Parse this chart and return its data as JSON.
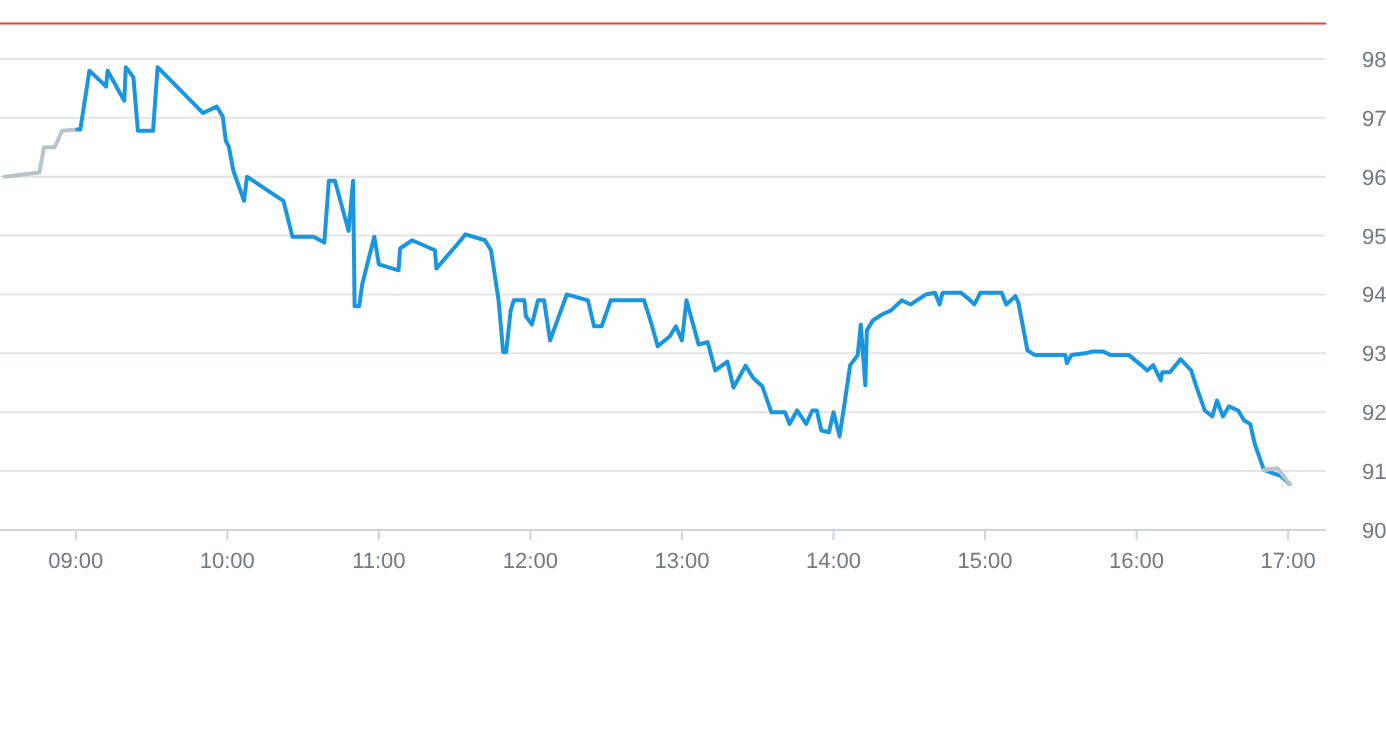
{
  "chart_data": {
    "type": "line",
    "xlim": [
      8.5,
      17.25
    ],
    "ylim": [
      90,
      99
    ],
    "xticks": [
      {
        "value": 9,
        "label": "09:00"
      },
      {
        "value": 10,
        "label": "10:00"
      },
      {
        "value": 11,
        "label": "11:00"
      },
      {
        "value": 12,
        "label": "12:00"
      },
      {
        "value": 13,
        "label": "13:00"
      },
      {
        "value": 14,
        "label": "14:00"
      },
      {
        "value": 15,
        "label": "15:00"
      },
      {
        "value": 16,
        "label": "16:00"
      },
      {
        "value": 17,
        "label": "17:00"
      }
    ],
    "yticks": [
      90,
      91,
      92,
      93,
      94,
      95,
      96,
      97,
      98
    ],
    "grid": "y",
    "marker": "none",
    "line_style": "solid",
    "ref_lines": [
      {
        "axis": "y",
        "value": 98.6,
        "color": "#e0443c"
      }
    ],
    "series": [
      {
        "color": "#b8c4cc",
        "x": [
          8.53,
          8.76,
          8.79,
          8.86,
          8.91,
          9.01
        ],
        "values": [
          96.0,
          96.07,
          96.5,
          96.5,
          96.78,
          96.8
        ]
      },
      {
        "color": "#1a96e0",
        "x": [
          9.01,
          9.03,
          9.09,
          9.2,
          9.21,
          9.32,
          9.33,
          9.38,
          9.41,
          9.51,
          9.54,
          9.84,
          9.93,
          9.97,
          9.99,
          10.01,
          10.04,
          10.11,
          10.13,
          10.37,
          10.43,
          10.57,
          10.64,
          10.67,
          10.71,
          10.8,
          10.83,
          10.84,
          10.87,
          10.89,
          10.93,
          10.97,
          11.0,
          11.13,
          11.14,
          11.22,
          11.37,
          11.38,
          11.54,
          11.57,
          11.7,
          11.74,
          11.79,
          11.82,
          11.84,
          11.87,
          11.89,
          11.96,
          11.97,
          12.01,
          12.05,
          12.09,
          12.13,
          12.24,
          12.38,
          12.42,
          12.47,
          12.53,
          12.75,
          12.8,
          12.84,
          12.92,
          12.96,
          13.0,
          13.03,
          13.11,
          13.17,
          13.22,
          13.3,
          13.34,
          13.42,
          13.47,
          13.53,
          13.59,
          13.68,
          13.71,
          13.76,
          13.82,
          13.86,
          13.89,
          13.92,
          13.97,
          14.0,
          14.04,
          14.07,
          14.11,
          14.16,
          14.18,
          14.21,
          14.22,
          14.26,
          14.32,
          14.38,
          14.45,
          14.51,
          14.61,
          14.67,
          14.7,
          14.72,
          14.84,
          14.89,
          14.93,
          14.97,
          15.11,
          15.14,
          15.2,
          15.22,
          15.28,
          15.33,
          15.53,
          15.54,
          15.57,
          15.66,
          15.71,
          15.78,
          15.83,
          15.95,
          16.03,
          16.07,
          16.11,
          16.16,
          16.17,
          16.22,
          16.29,
          16.36,
          16.39,
          16.45,
          16.5,
          16.53,
          16.57,
          16.61,
          16.67,
          16.71,
          16.75,
          16.78,
          16.84,
          16.95,
          17.01
        ],
        "values": [
          96.8,
          96.8,
          97.8,
          97.53,
          97.8,
          97.29,
          97.86,
          97.69,
          96.78,
          96.78,
          97.86,
          97.08,
          97.19,
          97.02,
          96.61,
          96.51,
          96.1,
          95.59,
          96.0,
          95.59,
          94.98,
          94.98,
          94.88,
          95.93,
          95.93,
          95.08,
          95.93,
          93.8,
          93.8,
          94.17,
          94.58,
          94.98,
          94.51,
          94.41,
          94.78,
          94.92,
          94.75,
          94.44,
          94.92,
          95.02,
          94.92,
          94.75,
          93.9,
          93.02,
          93.02,
          93.73,
          93.9,
          93.9,
          93.63,
          93.49,
          93.9,
          93.9,
          93.22,
          94.0,
          93.9,
          93.46,
          93.46,
          93.9,
          93.9,
          93.49,
          93.12,
          93.29,
          93.46,
          93.22,
          93.9,
          93.15,
          93.19,
          92.71,
          92.86,
          92.42,
          92.79,
          92.58,
          92.44,
          92.0,
          92.0,
          91.8,
          92.03,
          91.8,
          92.03,
          92.03,
          91.69,
          91.66,
          92.0,
          91.59,
          92.1,
          92.8,
          92.97,
          93.49,
          92.46,
          93.39,
          93.56,
          93.66,
          93.73,
          93.9,
          93.83,
          94.0,
          94.03,
          93.83,
          94.03,
          94.03,
          93.93,
          93.83,
          94.03,
          94.03,
          93.83,
          93.97,
          93.86,
          93.05,
          92.97,
          92.97,
          92.83,
          92.97,
          93.0,
          93.03,
          93.03,
          92.97,
          92.97,
          92.8,
          92.71,
          92.8,
          92.54,
          92.68,
          92.68,
          92.9,
          92.71,
          92.47,
          92.03,
          91.93,
          92.2,
          91.93,
          92.1,
          92.03,
          91.86,
          91.8,
          91.46,
          91.02,
          90.92,
          90.78
        ]
      },
      {
        "color": "#b8c4cc",
        "x": [
          16.84,
          16.93,
          17.01
        ],
        "values": [
          91.02,
          91.05,
          90.78
        ]
      }
    ]
  }
}
